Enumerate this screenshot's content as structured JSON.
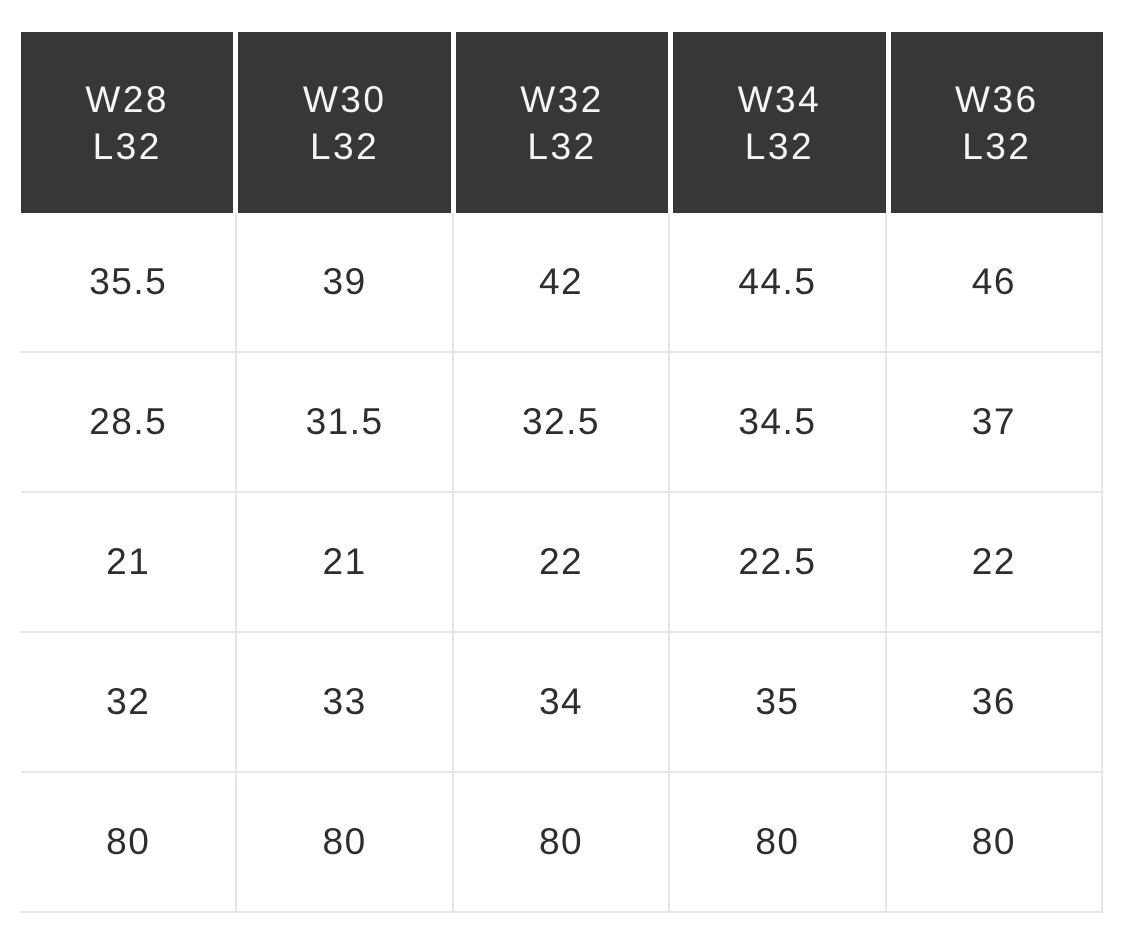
{
  "colors": {
    "header_background": "#373737",
    "header_text": "#f5f5f5",
    "body_text": "#2e2e2e",
    "grid_line": "#e5e6e9",
    "page_background": "#ffffff"
  },
  "table": {
    "columns": [
      {
        "waist": "W28",
        "length": "L32"
      },
      {
        "waist": "W30",
        "length": "L32"
      },
      {
        "waist": "W32",
        "length": "L32"
      },
      {
        "waist": "W34",
        "length": "L32"
      },
      {
        "waist": "W36",
        "length": "L32"
      }
    ],
    "rows": [
      {
        "values": [
          "35.5",
          "39",
          "42",
          "44.5",
          "46"
        ]
      },
      {
        "values": [
          "28.5",
          "31.5",
          "32.5",
          "34.5",
          "37"
        ]
      },
      {
        "values": [
          "21",
          "21",
          "22",
          "22.5",
          "22"
        ]
      },
      {
        "values": [
          "32",
          "33",
          "34",
          "35",
          "36"
        ]
      },
      {
        "values": [
          "80",
          "80",
          "80",
          "80",
          "80"
        ]
      }
    ]
  },
  "chart_data": {
    "type": "table",
    "title": "",
    "columns": [
      "W28 L32",
      "W30 L32",
      "W32 L32",
      "W34 L32",
      "W36 L32"
    ],
    "rows": [
      [
        35.5,
        39,
        42,
        44.5,
        46
      ],
      [
        28.5,
        31.5,
        32.5,
        34.5,
        37
      ],
      [
        21,
        21,
        22,
        22.5,
        22
      ],
      [
        32,
        33,
        34,
        35,
        36
      ],
      [
        80,
        80,
        80,
        80,
        80
      ]
    ]
  }
}
